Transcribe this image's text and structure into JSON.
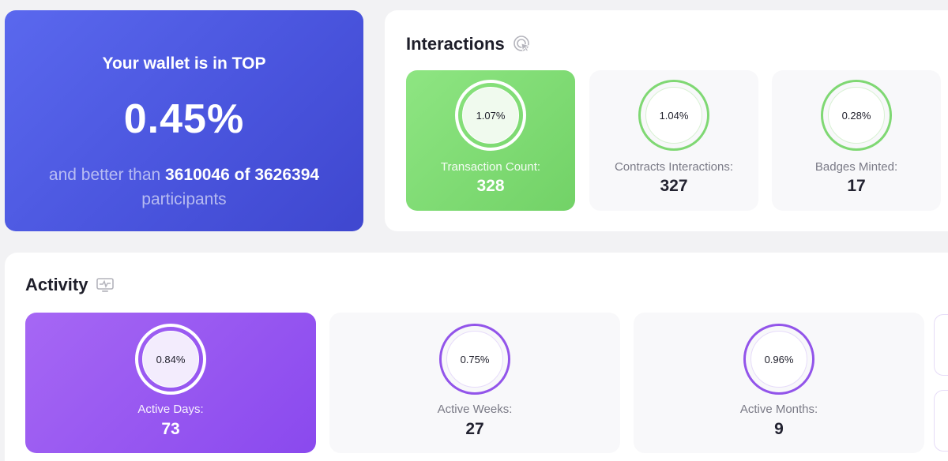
{
  "rank": {
    "title": "Your wallet is in TOP",
    "value": "0.45%",
    "prefix": "and better than",
    "better_than": "3610046",
    "of_word": "of",
    "total": "3626394",
    "suffix": "participants"
  },
  "interactions": {
    "title": "Interactions",
    "icon": "cursor-click-icon",
    "accent_color": "#7fd873",
    "tiles": [
      {
        "percent": "1.07%",
        "label": "Transaction Count:",
        "value": "328"
      },
      {
        "percent": "1.04%",
        "label": "Contracts Interactions:",
        "value": "327"
      },
      {
        "percent": "0.28%",
        "label": "Badges Minted:",
        "value": "17"
      }
    ]
  },
  "activity": {
    "title": "Activity",
    "icon": "monitor-pulse-icon",
    "accent_color": "#9254ea",
    "tiles": [
      {
        "percent": "0.84%",
        "label": "Active Days:",
        "value": "73"
      },
      {
        "percent": "0.75%",
        "label": "Active Weeks:",
        "value": "27"
      },
      {
        "percent": "0.96%",
        "label": "Active Months:",
        "value": "9"
      }
    ]
  }
}
